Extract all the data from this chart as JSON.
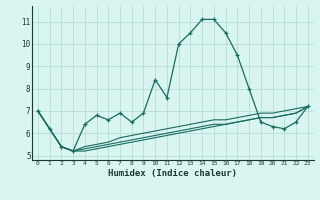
{
  "xlabel": "Humidex (Indice chaleur)",
  "ylabel": "",
  "bg_color": "#d8f5f0",
  "grid_color": "#b0d8d0",
  "line_color": "#1a6b60",
  "xlim": [
    -0.5,
    23.5
  ],
  "ylim": [
    4.8,
    11.7
  ],
  "yticks": [
    5,
    6,
    7,
    8,
    9,
    10,
    11
  ],
  "xticks": [
    0,
    1,
    2,
    3,
    4,
    5,
    6,
    7,
    8,
    9,
    10,
    11,
    12,
    13,
    14,
    15,
    16,
    17,
    18,
    19,
    20,
    21,
    22,
    23
  ],
  "series": [
    [
      7.0,
      6.2,
      5.4,
      5.2,
      6.4,
      6.8,
      6.6,
      6.9,
      6.5,
      6.9,
      8.4,
      7.6,
      10.0,
      10.5,
      11.1,
      11.1,
      10.5,
      9.5,
      8.0,
      6.5,
      6.3,
      6.2,
      6.5,
      7.2
    ],
    [
      7.0,
      6.2,
      5.4,
      5.2,
      5.4,
      5.5,
      5.6,
      5.8,
      5.9,
      6.0,
      6.1,
      6.2,
      6.3,
      6.4,
      6.5,
      6.6,
      6.6,
      6.7,
      6.8,
      6.9,
      6.9,
      7.0,
      7.1,
      7.2
    ],
    [
      7.0,
      6.2,
      5.4,
      5.2,
      5.3,
      5.4,
      5.5,
      5.6,
      5.7,
      5.8,
      5.9,
      6.0,
      6.1,
      6.2,
      6.3,
      6.4,
      6.4,
      6.5,
      6.6,
      6.7,
      6.7,
      6.8,
      6.9,
      7.2
    ],
    [
      7.0,
      6.2,
      5.4,
      5.2,
      5.2,
      5.3,
      5.4,
      5.5,
      5.6,
      5.7,
      5.8,
      5.9,
      6.0,
      6.1,
      6.2,
      6.3,
      6.4,
      6.5,
      6.6,
      6.7,
      6.7,
      6.8,
      6.9,
      7.2
    ]
  ]
}
